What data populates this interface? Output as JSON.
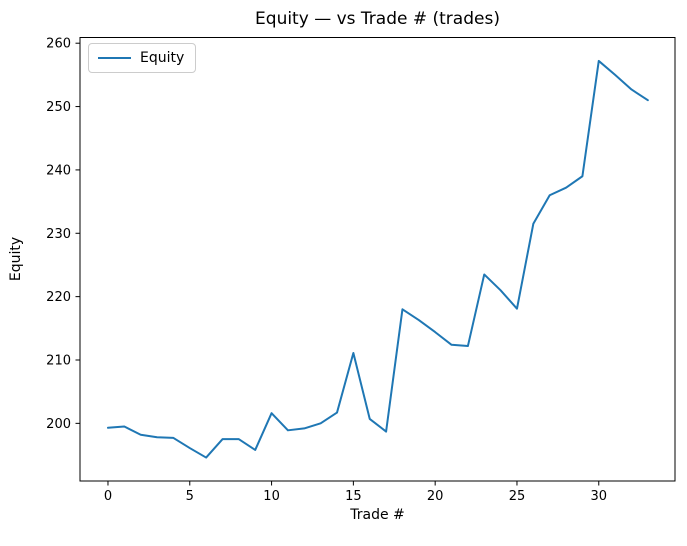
{
  "window": {
    "background": "#ffffff"
  },
  "colors": {
    "line": "#1f77b4",
    "axis": "#000000",
    "text": "#000000",
    "legend_border": "#cccccc"
  },
  "chart_data": {
    "type": "line",
    "title": "Equity — vs Trade # (trades)",
    "xlabel": "Trade #",
    "ylabel": "Equity",
    "grid": false,
    "legend_position": "upper-left",
    "xlim": [
      -1.71,
      34.66
    ],
    "ylim": [
      190.9,
      260.9
    ],
    "xticks": [
      0,
      5,
      10,
      15,
      20,
      25,
      30
    ],
    "yticks": [
      200,
      210,
      220,
      230,
      240,
      250,
      260
    ],
    "x": [
      0,
      1,
      2,
      3,
      4,
      5,
      6,
      7,
      8,
      9,
      10,
      11,
      12,
      13,
      14,
      15,
      16,
      17,
      18,
      19,
      20,
      21,
      22,
      23,
      24,
      25,
      26,
      27,
      28,
      29,
      30,
      31,
      32,
      33
    ],
    "series": [
      {
        "name": "Equity",
        "color": "#1f77b4",
        "values": [
          199.3,
          199.5,
          198.2,
          197.8,
          197.7,
          196.1,
          194.6,
          197.5,
          197.5,
          195.8,
          201.6,
          198.9,
          199.2,
          200.0,
          201.7,
          211.1,
          200.7,
          198.7,
          218.0,
          216.3,
          214.4,
          212.4,
          212.2,
          223.5,
          221.0,
          218.1,
          231.5,
          236.0,
          237.2,
          239.0,
          257.2,
          255.0,
          252.7,
          251.0
        ]
      }
    ]
  }
}
